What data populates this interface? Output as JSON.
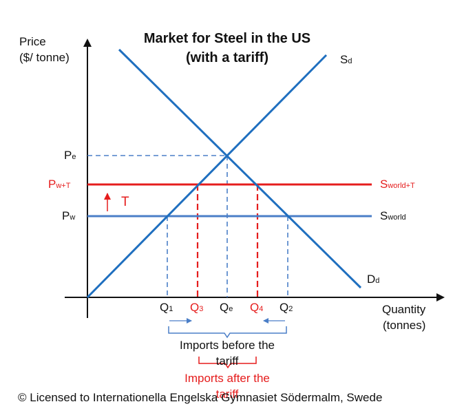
{
  "colors": {
    "blue": "#1f6fbf",
    "steel_blue": "#4a7ec7",
    "red": "#e51c1c",
    "axis": "#111111"
  },
  "diagram": {
    "title_line1": "Market for Steel in the US",
    "title_line2": "(with a tariff)",
    "y_axis_label_line1": "Price",
    "y_axis_label_line2": "($/ tonne)",
    "x_axis_label_line1": "Quantity",
    "x_axis_label_line2": "(tonnes)",
    "supply": {
      "main": "S",
      "sub": "d"
    },
    "demand": {
      "main": "D",
      "sub": "d"
    },
    "world_supply": {
      "main": "S",
      "sub": "world"
    },
    "world_supply_tariff": {
      "main": "S",
      "sub": "world+T"
    },
    "price_e": {
      "main": "P",
      "sub": "e"
    },
    "price_wt": {
      "main": "P",
      "sub": "w+T"
    },
    "price_w": {
      "main": "P",
      "sub": "w"
    },
    "tariff_label": "T",
    "q1": {
      "main": "Q",
      "sub": "1"
    },
    "q3": {
      "main": "Q",
      "sub": "3"
    },
    "qe": {
      "main": "Q",
      "sub": "e"
    },
    "q4": {
      "main": "Q",
      "sub": "4"
    },
    "q2": {
      "main": "Q",
      "sub": "2"
    },
    "imports_before_line1": "Imports before the",
    "imports_before_line2": "tariff",
    "imports_after_line1": "Imports after the",
    "imports_after_line2": "tariff",
    "copyright": "© Licensed to Internationella Engelska Gymnasiet Södermalm, Swede"
  }
}
